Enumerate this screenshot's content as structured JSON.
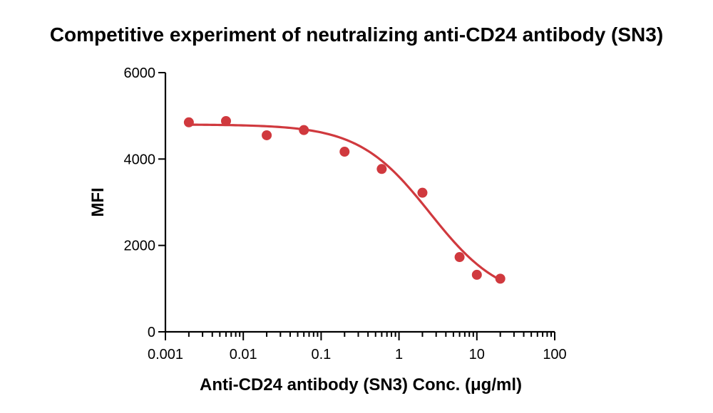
{
  "chart_data": {
    "type": "scatter",
    "title": "Competitive experiment of neutralizing anti-CD24 antibody (SN3)",
    "xlabel": "Anti-CD24 antibody (SN3) Conc. (μg/ml)",
    "ylabel": "MFI",
    "xscale": "log",
    "xlim": [
      0.001,
      100
    ],
    "ylim": [
      0,
      6000
    ],
    "x_ticks": [
      "0.001",
      "0.01",
      "0.1",
      "1",
      "10",
      "100"
    ],
    "y_ticks": [
      "0",
      "2000",
      "4000",
      "6000"
    ],
    "color": "#d0393e",
    "series": [
      {
        "name": "SN3",
        "x": [
          0.002,
          0.006,
          0.02,
          0.06,
          0.2,
          0.6,
          2,
          6,
          10,
          20
        ],
        "y": [
          4850,
          4880,
          4550,
          4670,
          4170,
          3770,
          3220,
          1730,
          1320,
          1230
        ]
      }
    ],
    "fit": {
      "model": "4PL",
      "top": 4800,
      "bottom": 700,
      "ec50": 2.5,
      "hill": 0.95,
      "x_range": [
        0.002,
        20
      ]
    }
  }
}
